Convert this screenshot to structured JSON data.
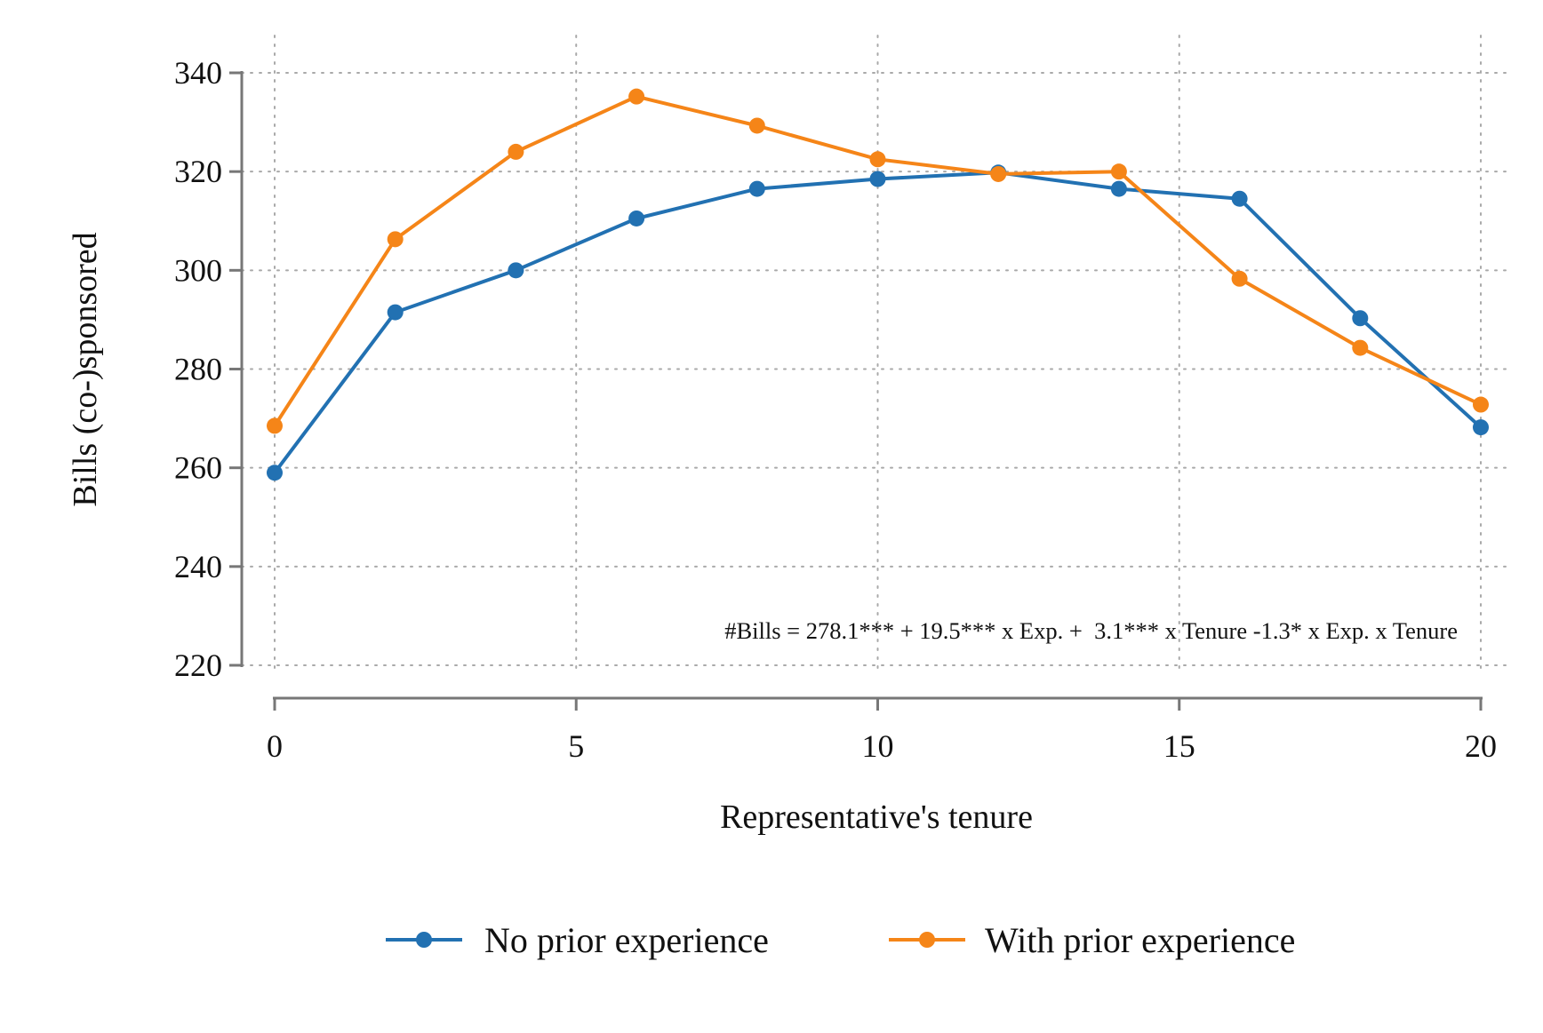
{
  "chart_data": {
    "type": "line",
    "xlabel": "Representative's tenure",
    "ylabel": "Bills (co-)sponsored",
    "xlim": [
      0,
      20
    ],
    "ylim": [
      220,
      340
    ],
    "x_ticks": [
      0,
      5,
      10,
      15,
      20
    ],
    "y_ticks": [
      220,
      240,
      260,
      280,
      300,
      320,
      340
    ],
    "grid": true,
    "legend_position": "bottom",
    "annotation": "#Bills = 278.1*** + 19.5*** x Exp. +  3.1*** x Tenure -1.3* x Exp. x Tenure",
    "x": [
      0,
      2,
      4,
      6,
      8,
      10,
      12,
      14,
      16,
      18,
      20
    ],
    "series": [
      {
        "name": "No prior experience",
        "color": "#2271b2",
        "values": [
          259,
          291.5,
          300,
          310.5,
          316.5,
          318.5,
          319.8,
          316.5,
          314.5,
          290.3,
          268.2
        ]
      },
      {
        "name": "With prior experience",
        "color": "#f58518",
        "values": [
          268.5,
          306.3,
          324,
          335.2,
          329.3,
          322.5,
          319.5,
          320,
          298.3,
          284.3,
          272.8
        ]
      }
    ]
  }
}
